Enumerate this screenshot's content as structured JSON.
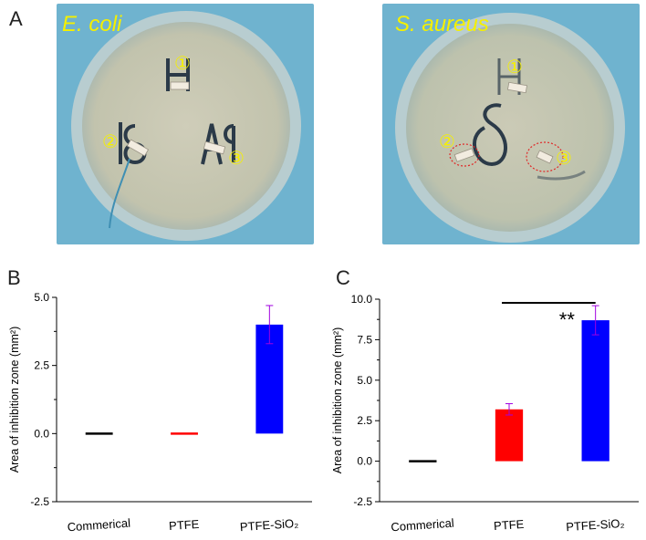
{
  "panels": {
    "a": "A",
    "b": "B",
    "c": "C"
  },
  "photos": [
    {
      "species": "E. coli",
      "markers": [
        "①",
        "②",
        "③"
      ]
    },
    {
      "species": "S. aureus",
      "markers": [
        "①",
        "②",
        "③"
      ]
    }
  ],
  "colors": {
    "commercial": "#000000",
    "ptfe": "#ff0000",
    "ptfe_sio2": "#0000ff",
    "error_bar": "#a000e0",
    "marker": "#f5f000"
  },
  "chart_data": [
    {
      "type": "bar",
      "categories": [
        "Commerical",
        "PTFE",
        "PTFE-SiO₂"
      ],
      "values": [
        0,
        0,
        4.0
      ],
      "errors": [
        0,
        0,
        0.7
      ],
      "ylabel": "Area of  inhibition zone (mm²)",
      "ylim": [
        -2.5,
        5.0
      ],
      "yticks": [
        -2.5,
        0.0,
        2.5,
        5.0
      ],
      "ytick_labels": [
        "-2.5",
        "0.0",
        "2.5",
        "5.0"
      ],
      "colors": [
        "#000000",
        "#ff0000",
        "#0000ff"
      ]
    },
    {
      "type": "bar",
      "categories": [
        "Commerical",
        "PTFE",
        "PTFE-SiO₂"
      ],
      "values": [
        0,
        3.2,
        8.7
      ],
      "errors": [
        0,
        0.35,
        0.9
      ],
      "ylabel": "Area of  inhibition zone (mm²)",
      "ylim": [
        -2.5,
        10.0
      ],
      "yticks": [
        -2.5,
        0.0,
        2.5,
        5.0,
        7.5,
        10.0
      ],
      "ytick_labels": [
        "-2.5",
        "0.0",
        "2.5",
        "5.0",
        "7.5",
        "10.0"
      ],
      "colors": [
        "#000000",
        "#ff0000",
        "#0000ff"
      ],
      "significance": {
        "label": "**",
        "from": 1,
        "to": 2
      }
    }
  ]
}
